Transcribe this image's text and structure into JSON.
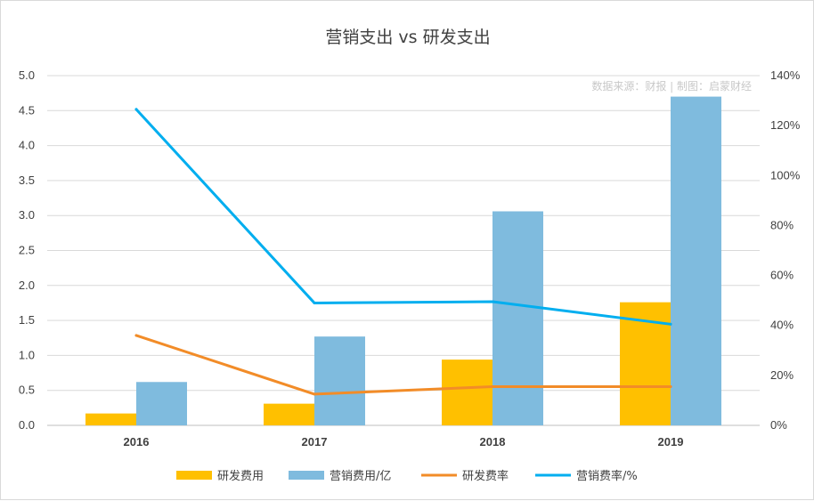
{
  "chart_data": {
    "type": "bar",
    "title": "营销支出 vs 研发支出",
    "categories": [
      "2016",
      "2017",
      "2018",
      "2019"
    ],
    "series": [
      {
        "name": "研发费用",
        "kind": "bar",
        "axis": "left",
        "color": "#FFC000",
        "values": [
          0.17,
          0.31,
          0.94,
          1.76
        ]
      },
      {
        "name": "营销费用/亿",
        "kind": "bar",
        "axis": "left",
        "color": "#7FBBDE",
        "values": [
          0.62,
          1.27,
          3.06,
          4.7
        ]
      },
      {
        "name": "研发费率",
        "kind": "line",
        "axis": "right",
        "color": "#F28C28",
        "values": [
          36,
          12.5,
          15.5,
          15.5
        ]
      },
      {
        "name": "营销费率/%",
        "kind": "line",
        "axis": "right",
        "color": "#00AEEF",
        "values": [
          126.5,
          49,
          49.5,
          40.5
        ]
      }
    ],
    "y_left": {
      "min": 0,
      "max": 5.0,
      "ticks": [
        "0.0",
        "0.5",
        "1.0",
        "1.5",
        "2.0",
        "2.5",
        "3.0",
        "3.5",
        "4.0",
        "4.5",
        "5.0"
      ]
    },
    "y_right": {
      "min": 0,
      "max": 140,
      "ticks": [
        "0%",
        "20%",
        "40%",
        "60%",
        "80%",
        "100%",
        "120%",
        "140%"
      ]
    },
    "grid": true,
    "legend_position": "bottom",
    "watermark": "数据来源：财报 | 制图：启蒙财经"
  }
}
